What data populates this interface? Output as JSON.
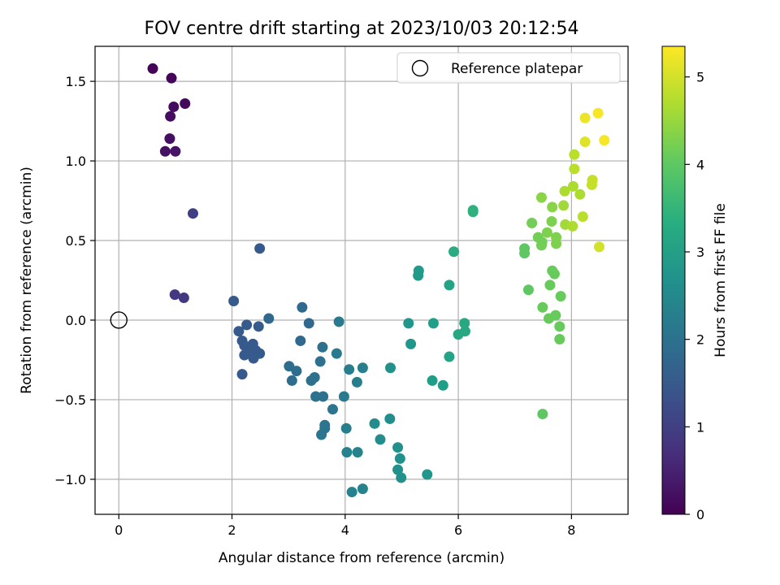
{
  "chart_data": {
    "type": "scatter",
    "title": "FOV centre drift starting at 2023/10/03 20:12:54",
    "xlabel": "Angular distance from reference (arcmin)",
    "ylabel": "Rotation from reference (arcmin)",
    "xlim": [
      -0.42,
      9.0
    ],
    "ylim": [
      -1.22,
      1.72
    ],
    "xticks": [
      0,
      2,
      4,
      6,
      8
    ],
    "xtick_labels": [
      "0",
      "2",
      "4",
      "6",
      "8"
    ],
    "yticks": [
      -1.0,
      -0.5,
      0.0,
      0.5,
      1.0,
      1.5
    ],
    "ytick_labels": [
      "−1.0",
      "−0.5",
      "0.0",
      "0.5",
      "1.0",
      "1.5"
    ],
    "grid": true,
    "legend": {
      "location": "top-right",
      "entries": [
        "Reference platepar"
      ]
    },
    "reference_point": {
      "x": 0,
      "y": 0
    },
    "colorbar": {
      "label": "Hours from first FF file",
      "colormap": "viridis",
      "range": [
        0,
        5.35
      ],
      "ticks": [
        0,
        1,
        2,
        3,
        4,
        5
      ],
      "tick_labels": [
        "0",
        "1",
        "2",
        "3",
        "4",
        "5"
      ]
    },
    "points": [
      {
        "x": 0.6,
        "y": 1.58,
        "c": 0.05
      },
      {
        "x": 0.93,
        "y": 1.52,
        "c": 0.08
      },
      {
        "x": 1.17,
        "y": 1.36,
        "c": 0.12
      },
      {
        "x": 0.97,
        "y": 1.34,
        "c": 0.15
      },
      {
        "x": 0.91,
        "y": 1.28,
        "c": 0.18
      },
      {
        "x": 0.9,
        "y": 1.14,
        "c": 0.22
      },
      {
        "x": 0.82,
        "y": 1.06,
        "c": 0.25
      },
      {
        "x": 1.0,
        "y": 1.06,
        "c": 0.28
      },
      {
        "x": 1.31,
        "y": 0.67,
        "c": 1.0
      },
      {
        "x": 0.99,
        "y": 0.16,
        "c": 0.9
      },
      {
        "x": 1.15,
        "y": 0.14,
        "c": 0.9
      },
      {
        "x": 2.49,
        "y": 0.45,
        "c": 1.5
      },
      {
        "x": 2.03,
        "y": 0.12,
        "c": 1.5
      },
      {
        "x": 2.12,
        "y": -0.07,
        "c": 1.5
      },
      {
        "x": 2.26,
        "y": -0.03,
        "c": 1.5
      },
      {
        "x": 2.47,
        "y": -0.04,
        "c": 1.55
      },
      {
        "x": 2.65,
        "y": 0.01,
        "c": 1.8
      },
      {
        "x": 2.18,
        "y": -0.13,
        "c": 1.5
      },
      {
        "x": 2.22,
        "y": -0.16,
        "c": 1.5
      },
      {
        "x": 2.27,
        "y": -0.19,
        "c": 1.5
      },
      {
        "x": 2.37,
        "y": -0.15,
        "c": 1.5
      },
      {
        "x": 2.31,
        "y": -0.21,
        "c": 1.5
      },
      {
        "x": 2.42,
        "y": -0.19,
        "c": 1.5
      },
      {
        "x": 2.49,
        "y": -0.21,
        "c": 1.5
      },
      {
        "x": 2.22,
        "y": -0.22,
        "c": 1.5
      },
      {
        "x": 2.38,
        "y": -0.24,
        "c": 1.5
      },
      {
        "x": 2.18,
        "y": -0.34,
        "c": 1.5
      },
      {
        "x": 3.24,
        "y": 0.08,
        "c": 1.8
      },
      {
        "x": 3.36,
        "y": -0.02,
        "c": 1.8
      },
      {
        "x": 3.21,
        "y": -0.13,
        "c": 1.8
      },
      {
        "x": 3.01,
        "y": -0.29,
        "c": 1.9
      },
      {
        "x": 3.14,
        "y": -0.32,
        "c": 1.9
      },
      {
        "x": 3.06,
        "y": -0.38,
        "c": 1.9
      },
      {
        "x": 3.46,
        "y": -0.36,
        "c": 2.0
      },
      {
        "x": 3.4,
        "y": -0.38,
        "c": 2.0
      },
      {
        "x": 3.6,
        "y": -0.17,
        "c": 2.0
      },
      {
        "x": 3.56,
        "y": -0.26,
        "c": 2.0
      },
      {
        "x": 3.48,
        "y": -0.48,
        "c": 2.0
      },
      {
        "x": 3.61,
        "y": -0.48,
        "c": 2.0
      },
      {
        "x": 3.78,
        "y": -0.56,
        "c": 2.1
      },
      {
        "x": 3.64,
        "y": -0.66,
        "c": 2.1
      },
      {
        "x": 3.64,
        "y": -0.68,
        "c": 2.1
      },
      {
        "x": 3.58,
        "y": -0.72,
        "c": 2.1
      },
      {
        "x": 3.89,
        "y": -0.01,
        "c": 2.2
      },
      {
        "x": 3.85,
        "y": -0.21,
        "c": 2.2
      },
      {
        "x": 3.98,
        "y": -0.48,
        "c": 2.2
      },
      {
        "x": 4.07,
        "y": -0.31,
        "c": 2.3
      },
      {
        "x": 4.21,
        "y": -0.39,
        "c": 2.3
      },
      {
        "x": 4.31,
        "y": -0.3,
        "c": 2.3
      },
      {
        "x": 4.02,
        "y": -0.68,
        "c": 2.3
      },
      {
        "x": 4.03,
        "y": -0.83,
        "c": 2.4
      },
      {
        "x": 4.22,
        "y": -0.83,
        "c": 2.4
      },
      {
        "x": 4.12,
        "y": -1.08,
        "c": 2.4
      },
      {
        "x": 4.31,
        "y": -1.06,
        "c": 2.4
      },
      {
        "x": 4.52,
        "y": -0.65,
        "c": 2.6
      },
      {
        "x": 4.62,
        "y": -0.75,
        "c": 2.6
      },
      {
        "x": 4.79,
        "y": -0.62,
        "c": 2.6
      },
      {
        "x": 4.93,
        "y": -0.8,
        "c": 2.7
      },
      {
        "x": 4.97,
        "y": -0.87,
        "c": 2.7
      },
      {
        "x": 4.93,
        "y": -0.94,
        "c": 2.7
      },
      {
        "x": 4.99,
        "y": -0.99,
        "c": 2.7
      },
      {
        "x": 5.45,
        "y": -0.97,
        "c": 2.8
      },
      {
        "x": 4.8,
        "y": -0.3,
        "c": 2.7
      },
      {
        "x": 5.12,
        "y": -0.02,
        "c": 2.8
      },
      {
        "x": 5.16,
        "y": -0.15,
        "c": 2.8
      },
      {
        "x": 5.29,
        "y": 0.28,
        "c": 2.9
      },
      {
        "x": 5.3,
        "y": 0.31,
        "c": 2.9
      },
      {
        "x": 5.56,
        "y": -0.02,
        "c": 3.0
      },
      {
        "x": 5.54,
        "y": -0.38,
        "c": 3.0
      },
      {
        "x": 5.73,
        "y": -0.41,
        "c": 3.0
      },
      {
        "x": 5.84,
        "y": -0.23,
        "c": 3.1
      },
      {
        "x": 5.84,
        "y": 0.22,
        "c": 3.1
      },
      {
        "x": 5.92,
        "y": 0.43,
        "c": 3.3
      },
      {
        "x": 6.11,
        "y": -0.02,
        "c": 3.2
      },
      {
        "x": 6.12,
        "y": -0.07,
        "c": 3.2
      },
      {
        "x": 6.0,
        "y": -0.09,
        "c": 3.2
      },
      {
        "x": 6.26,
        "y": 0.69,
        "c": 3.4
      },
      {
        "x": 6.26,
        "y": 0.68,
        "c": 3.4
      },
      {
        "x": 7.17,
        "y": 0.45,
        "c": 4.0
      },
      {
        "x": 7.17,
        "y": 0.42,
        "c": 4.0
      },
      {
        "x": 7.24,
        "y": 0.19,
        "c": 4.0
      },
      {
        "x": 7.49,
        "y": -0.59,
        "c": 4.0
      },
      {
        "x": 7.49,
        "y": 0.08,
        "c": 4.1
      },
      {
        "x": 7.6,
        "y": 0.01,
        "c": 4.1
      },
      {
        "x": 7.72,
        "y": 0.03,
        "c": 4.1
      },
      {
        "x": 7.79,
        "y": -0.04,
        "c": 4.1
      },
      {
        "x": 7.79,
        "y": -0.12,
        "c": 4.1
      },
      {
        "x": 7.81,
        "y": 0.15,
        "c": 4.1
      },
      {
        "x": 7.62,
        "y": 0.22,
        "c": 4.1
      },
      {
        "x": 7.66,
        "y": 0.31,
        "c": 4.1
      },
      {
        "x": 7.7,
        "y": 0.29,
        "c": 4.1
      },
      {
        "x": 7.3,
        "y": 0.61,
        "c": 4.2
      },
      {
        "x": 7.41,
        "y": 0.52,
        "c": 4.2
      },
      {
        "x": 7.48,
        "y": 0.49,
        "c": 4.2
      },
      {
        "x": 7.47,
        "y": 0.47,
        "c": 4.2
      },
      {
        "x": 7.57,
        "y": 0.55,
        "c": 4.3
      },
      {
        "x": 7.73,
        "y": 0.52,
        "c": 4.3
      },
      {
        "x": 7.73,
        "y": 0.48,
        "c": 4.3
      },
      {
        "x": 7.65,
        "y": 0.62,
        "c": 4.3
      },
      {
        "x": 7.47,
        "y": 0.77,
        "c": 4.4
      },
      {
        "x": 7.66,
        "y": 0.71,
        "c": 4.4
      },
      {
        "x": 7.86,
        "y": 0.72,
        "c": 4.6
      },
      {
        "x": 7.89,
        "y": 0.6,
        "c": 4.6
      },
      {
        "x": 8.02,
        "y": 0.59,
        "c": 4.7
      },
      {
        "x": 8.2,
        "y": 0.65,
        "c": 4.8
      },
      {
        "x": 7.88,
        "y": 0.81,
        "c": 4.7
      },
      {
        "x": 8.03,
        "y": 0.84,
        "c": 4.7
      },
      {
        "x": 8.15,
        "y": 0.79,
        "c": 4.7
      },
      {
        "x": 8.05,
        "y": 0.95,
        "c": 4.8
      },
      {
        "x": 8.05,
        "y": 1.04,
        "c": 4.8
      },
      {
        "x": 8.37,
        "y": 0.88,
        "c": 4.9
      },
      {
        "x": 8.36,
        "y": 0.85,
        "c": 4.9
      },
      {
        "x": 8.49,
        "y": 0.46,
        "c": 5.0
      },
      {
        "x": 8.24,
        "y": 1.12,
        "c": 5.1
      },
      {
        "x": 8.24,
        "y": 1.27,
        "c": 5.2
      },
      {
        "x": 8.47,
        "y": 1.3,
        "c": 5.3
      },
      {
        "x": 8.58,
        "y": 1.13,
        "c": 5.3
      }
    ]
  }
}
